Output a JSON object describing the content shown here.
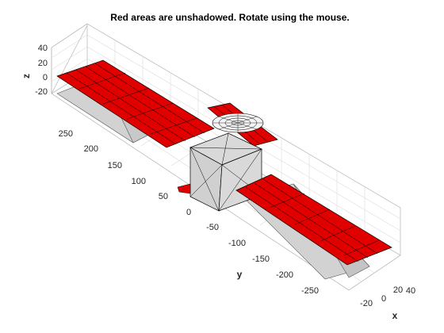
{
  "figure": {
    "title": "Red areas are unshadowed. Rotate using the mouse."
  },
  "axes": {
    "x_label": "x",
    "y_label": "y",
    "z_label": "z",
    "x_ticks": [
      "-20",
      "0",
      "20",
      "40"
    ],
    "y_ticks": [
      "250",
      "200",
      "150",
      "100",
      "50",
      "0",
      "-50",
      "-100",
      "-150",
      "-200",
      "-250"
    ],
    "z_ticks": [
      "40",
      "20",
      "0",
      "-20"
    ],
    "grid": true,
    "view": "3-D rotatable"
  },
  "scene": {
    "lit_color": "#e00000",
    "shadow_color": "#d2d2d2",
    "body_color": "#d9d9d9",
    "edge_color": "#000000"
  }
}
